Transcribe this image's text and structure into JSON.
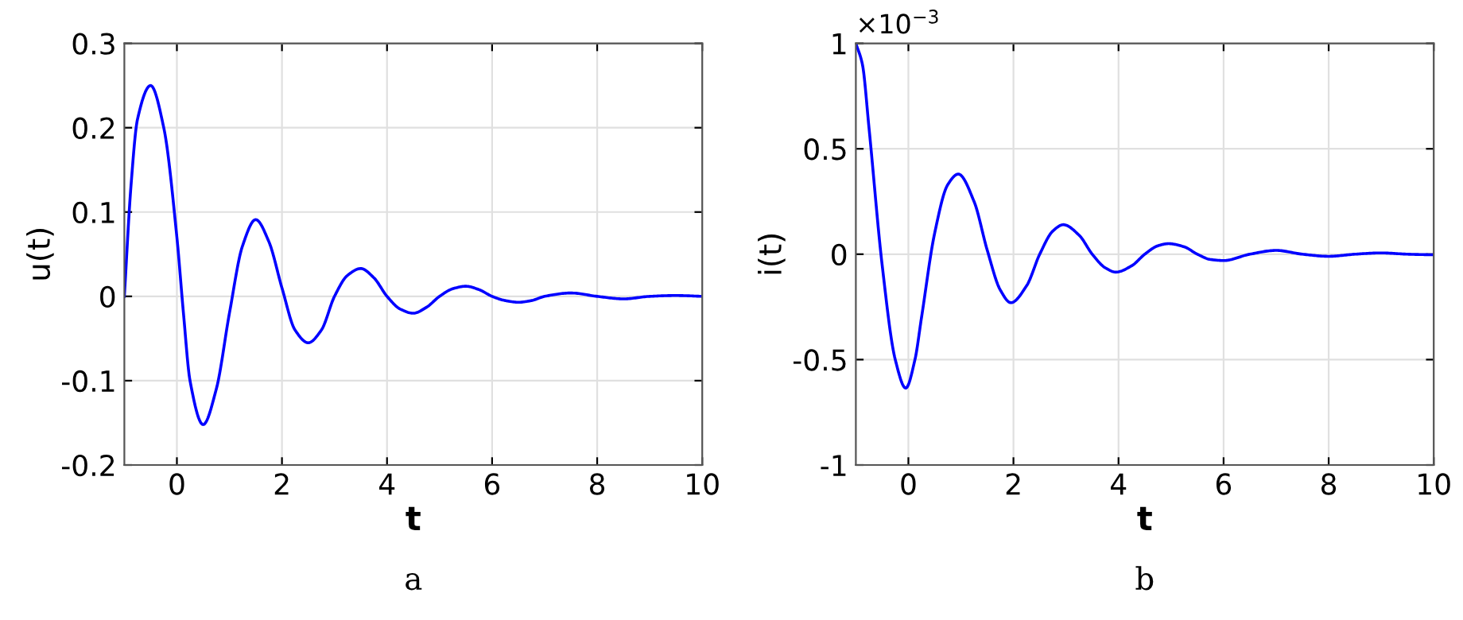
{
  "chart_data": [
    {
      "type": "line",
      "xlabel": "t",
      "ylabel": "u(t)",
      "annotations": [
        "a"
      ],
      "grid": true,
      "xlim": [
        -1,
        10
      ],
      "ylim": [
        -0.2,
        0.3
      ],
      "xticks": [
        0,
        2,
        4,
        6,
        8,
        10
      ],
      "yticks": [
        -0.2,
        -0.1,
        0,
        0.1,
        0.2,
        0.3
      ],
      "series": [
        {
          "color": "#0000ff",
          "x": [
            -1,
            -0.875,
            -0.75,
            -0.5,
            -0.25,
            0,
            0.125,
            0.25,
            0.5,
            0.75,
            1,
            1.25,
            1.5,
            1.75,
            2,
            2.25,
            2.5,
            2.75,
            3,
            3.25,
            3.5,
            3.75,
            4,
            4.25,
            4.5,
            4.75,
            5,
            5.25,
            5.5,
            5.75,
            6,
            6.25,
            6.5,
            6.75,
            7,
            7.5,
            8,
            8.5,
            9,
            9.5,
            10
          ],
          "values": [
            0,
            0.13,
            0.21,
            0.25,
            0.2,
            0.07,
            -0.02,
            -0.1,
            -0.152,
            -0.11,
            -0.02,
            0.06,
            0.091,
            0.065,
            0.01,
            -0.04,
            -0.055,
            -0.04,
            0.0,
            0.025,
            0.033,
            0.022,
            0.0,
            -0.015,
            -0.02,
            -0.013,
            0.0,
            0.009,
            0.012,
            0.008,
            0.0,
            -0.005,
            -0.007,
            -0.005,
            0.0,
            0.004,
            0.0,
            -0.003,
            0.0,
            0.001,
            0.0
          ]
        }
      ]
    },
    {
      "type": "line",
      "xlabel": "t",
      "ylabel": "i(t)",
      "annotations": [
        "×10$^{−3}$",
        "b"
      ],
      "grid": true,
      "xlim": [
        -1,
        10
      ],
      "ylim": [
        -1,
        1
      ],
      "xticks": [
        0,
        2,
        4,
        6,
        8,
        10
      ],
      "yticks": [
        -1,
        -0.5,
        0,
        0.5,
        1
      ],
      "series": [
        {
          "color": "#0000ff",
          "x": [
            -1,
            -0.875,
            -0.75,
            -0.5,
            -0.25,
            -0.05,
            0.125,
            0.25,
            0.5,
            0.75,
            0.95,
            1.25,
            1.5,
            1.75,
            1.95,
            2.25,
            2.5,
            2.75,
            2.95,
            3.25,
            3.5,
            3.75,
            3.95,
            4.25,
            4.5,
            4.75,
            4.95,
            5.25,
            5.5,
            5.75,
            6,
            6.5,
            7,
            7.5,
            8,
            8.5,
            9,
            9.5,
            10
          ],
          "values": [
            1,
            0.9,
            0.6,
            -0.05,
            -0.5,
            -0.635,
            -0.5,
            -0.3,
            0.1,
            0.33,
            0.38,
            0.25,
            0.02,
            -0.17,
            -0.23,
            -0.15,
            0.0,
            0.11,
            0.14,
            0.09,
            0.0,
            -0.065,
            -0.085,
            -0.055,
            0.0,
            0.04,
            0.05,
            0.035,
            0.0,
            -0.025,
            -0.03,
            0.0,
            0.018,
            0.0,
            -0.01,
            0.0,
            0.006,
            0.0,
            -0.003
          ]
        }
      ]
    }
  ]
}
